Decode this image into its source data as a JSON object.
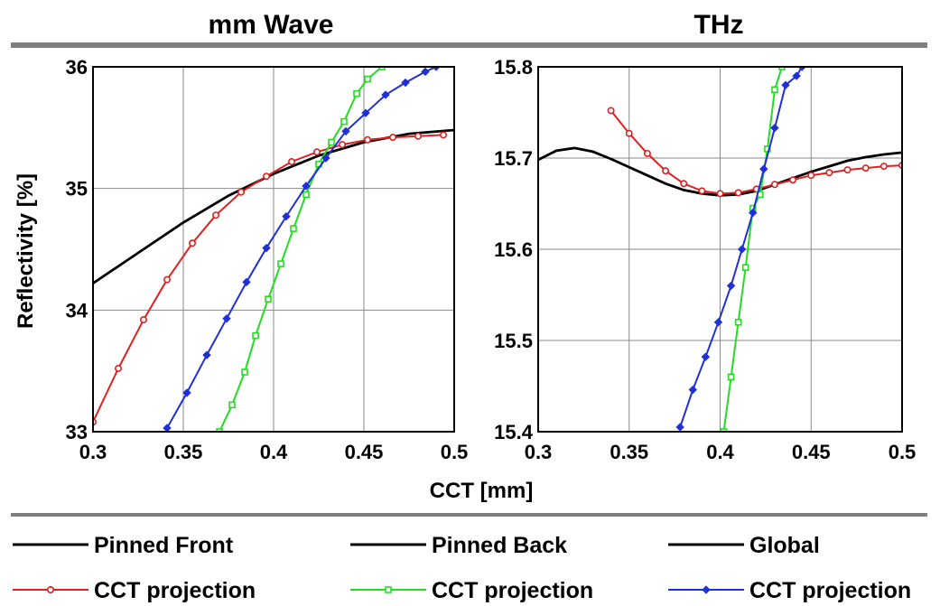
{
  "chart_data": [
    {
      "type": "line",
      "title": "mm Wave",
      "xlabel": "CCT [mm]",
      "ylabel": "Reflectivity [%]",
      "xlim": [
        0.3,
        0.5
      ],
      "ylim": [
        33,
        36
      ],
      "xticks": [
        "0.3",
        "0.35",
        "0.4",
        "0.45",
        "0.5"
      ],
      "yticks": [
        "33",
        "34",
        "35",
        "36"
      ],
      "grid": true,
      "series": [
        {
          "name": "Pinned Front",
          "color": "#000000",
          "marker": "none",
          "x": [
            0.3,
            0.325,
            0.35,
            0.375,
            0.4,
            0.425,
            0.45,
            0.475,
            0.5
          ],
          "y": [
            34.22,
            34.47,
            34.72,
            34.94,
            35.12,
            35.27,
            35.38,
            35.45,
            35.48
          ]
        },
        {
          "name": "CCT projection",
          "color": "#e02020",
          "marker": "circle",
          "x": [
            0.3,
            0.314,
            0.328,
            0.341,
            0.355,
            0.368,
            0.382,
            0.396,
            0.41,
            0.424,
            0.438,
            0.452,
            0.466,
            0.48,
            0.494
          ],
          "y": [
            33.08,
            33.52,
            33.92,
            34.25,
            34.55,
            34.78,
            34.97,
            35.1,
            35.22,
            35.3,
            35.36,
            35.4,
            35.42,
            35.43,
            35.44
          ]
        },
        {
          "name": "CCT projection",
          "color": "#22dd22",
          "marker": "square",
          "x": [
            0.37,
            0.377,
            0.384,
            0.39,
            0.397,
            0.404,
            0.411,
            0.418,
            0.425,
            0.432,
            0.439,
            0.446,
            0.452,
            0.46
          ],
          "y": [
            33.0,
            33.22,
            33.49,
            33.79,
            34.09,
            34.38,
            34.67,
            34.95,
            35.2,
            35.38,
            35.55,
            35.78,
            35.9,
            36.0
          ]
        },
        {
          "name": "CCT projection",
          "color": "#2030d8",
          "marker": "diamond",
          "x": [
            0.341,
            0.352,
            0.363,
            0.374,
            0.385,
            0.396,
            0.407,
            0.418,
            0.429,
            0.44,
            0.451,
            0.462,
            0.473,
            0.484,
            0.49
          ],
          "y": [
            33.03,
            33.32,
            33.63,
            33.93,
            34.23,
            34.51,
            34.77,
            35.02,
            35.25,
            35.47,
            35.62,
            35.77,
            35.87,
            35.96,
            36.0
          ]
        }
      ]
    },
    {
      "type": "line",
      "title": "THz",
      "xlabel": "CCT [mm]",
      "ylabel": "",
      "xlim": [
        0.3,
        0.5
      ],
      "ylim": [
        15.4,
        15.8
      ],
      "xticks": [
        "0.3",
        "0.35",
        "0.4",
        "0.45",
        "0.5"
      ],
      "yticks": [
        "15.4",
        "15.5",
        "15.6",
        "15.7",
        "15.8"
      ],
      "grid": true,
      "series": [
        {
          "name": "Pinned Back",
          "color": "#000000",
          "marker": "none",
          "x": [
            0.3,
            0.31,
            0.32,
            0.33,
            0.34,
            0.35,
            0.36,
            0.37,
            0.38,
            0.39,
            0.4,
            0.41,
            0.42,
            0.43,
            0.44,
            0.45,
            0.46,
            0.47,
            0.48,
            0.49,
            0.5
          ],
          "y": [
            15.698,
            15.708,
            15.711,
            15.707,
            15.699,
            15.69,
            15.681,
            15.672,
            15.665,
            15.661,
            15.659,
            15.66,
            15.664,
            15.671,
            15.678,
            15.685,
            15.691,
            15.697,
            15.701,
            15.704,
            15.706
          ]
        },
        {
          "name": "CCT projection",
          "color": "#e02020",
          "marker": "circle",
          "x": [
            0.34,
            0.35,
            0.36,
            0.37,
            0.38,
            0.39,
            0.4,
            0.41,
            0.42,
            0.43,
            0.44,
            0.45,
            0.46,
            0.47,
            0.48,
            0.49,
            0.5
          ],
          "y": [
            15.752,
            15.727,
            15.705,
            15.686,
            15.672,
            15.664,
            15.661,
            15.662,
            15.666,
            15.671,
            15.676,
            15.681,
            15.684,
            15.687,
            15.689,
            15.691,
            15.692
          ]
        },
        {
          "name": "CCT projection",
          "color": "#22dd22",
          "marker": "square",
          "x": [
            0.402,
            0.406,
            0.41,
            0.414,
            0.418,
            0.422,
            0.426,
            0.43,
            0.434
          ],
          "y": [
            15.4,
            15.46,
            15.52,
            15.58,
            15.645,
            15.66,
            15.71,
            15.775,
            15.8
          ]
        },
        {
          "name": "CCT projection",
          "color": "#2030d8",
          "marker": "diamond",
          "x": [
            0.378,
            0.385,
            0.392,
            0.399,
            0.406,
            0.412,
            0.418,
            0.424,
            0.43,
            0.436,
            0.442,
            0.445
          ],
          "y": [
            15.405,
            15.446,
            15.482,
            15.52,
            15.56,
            15.6,
            15.64,
            15.688,
            15.733,
            15.78,
            15.79,
            15.8
          ]
        }
      ]
    }
  ],
  "legend": {
    "placement": "bottom",
    "items": [
      {
        "label": "Pinned Front",
        "color": "#000000",
        "marker": "none"
      },
      {
        "label": "Pinned Back",
        "color": "#000000",
        "marker": "none"
      },
      {
        "label": "Global",
        "color": "#000000",
        "marker": "none"
      },
      {
        "label": "CCT projection",
        "color": "#e02020",
        "marker": "circle"
      },
      {
        "label": "CCT projection",
        "color": "#22dd22",
        "marker": "square"
      },
      {
        "label": "CCT projection",
        "color": "#2030d8",
        "marker": "diamond"
      }
    ]
  }
}
